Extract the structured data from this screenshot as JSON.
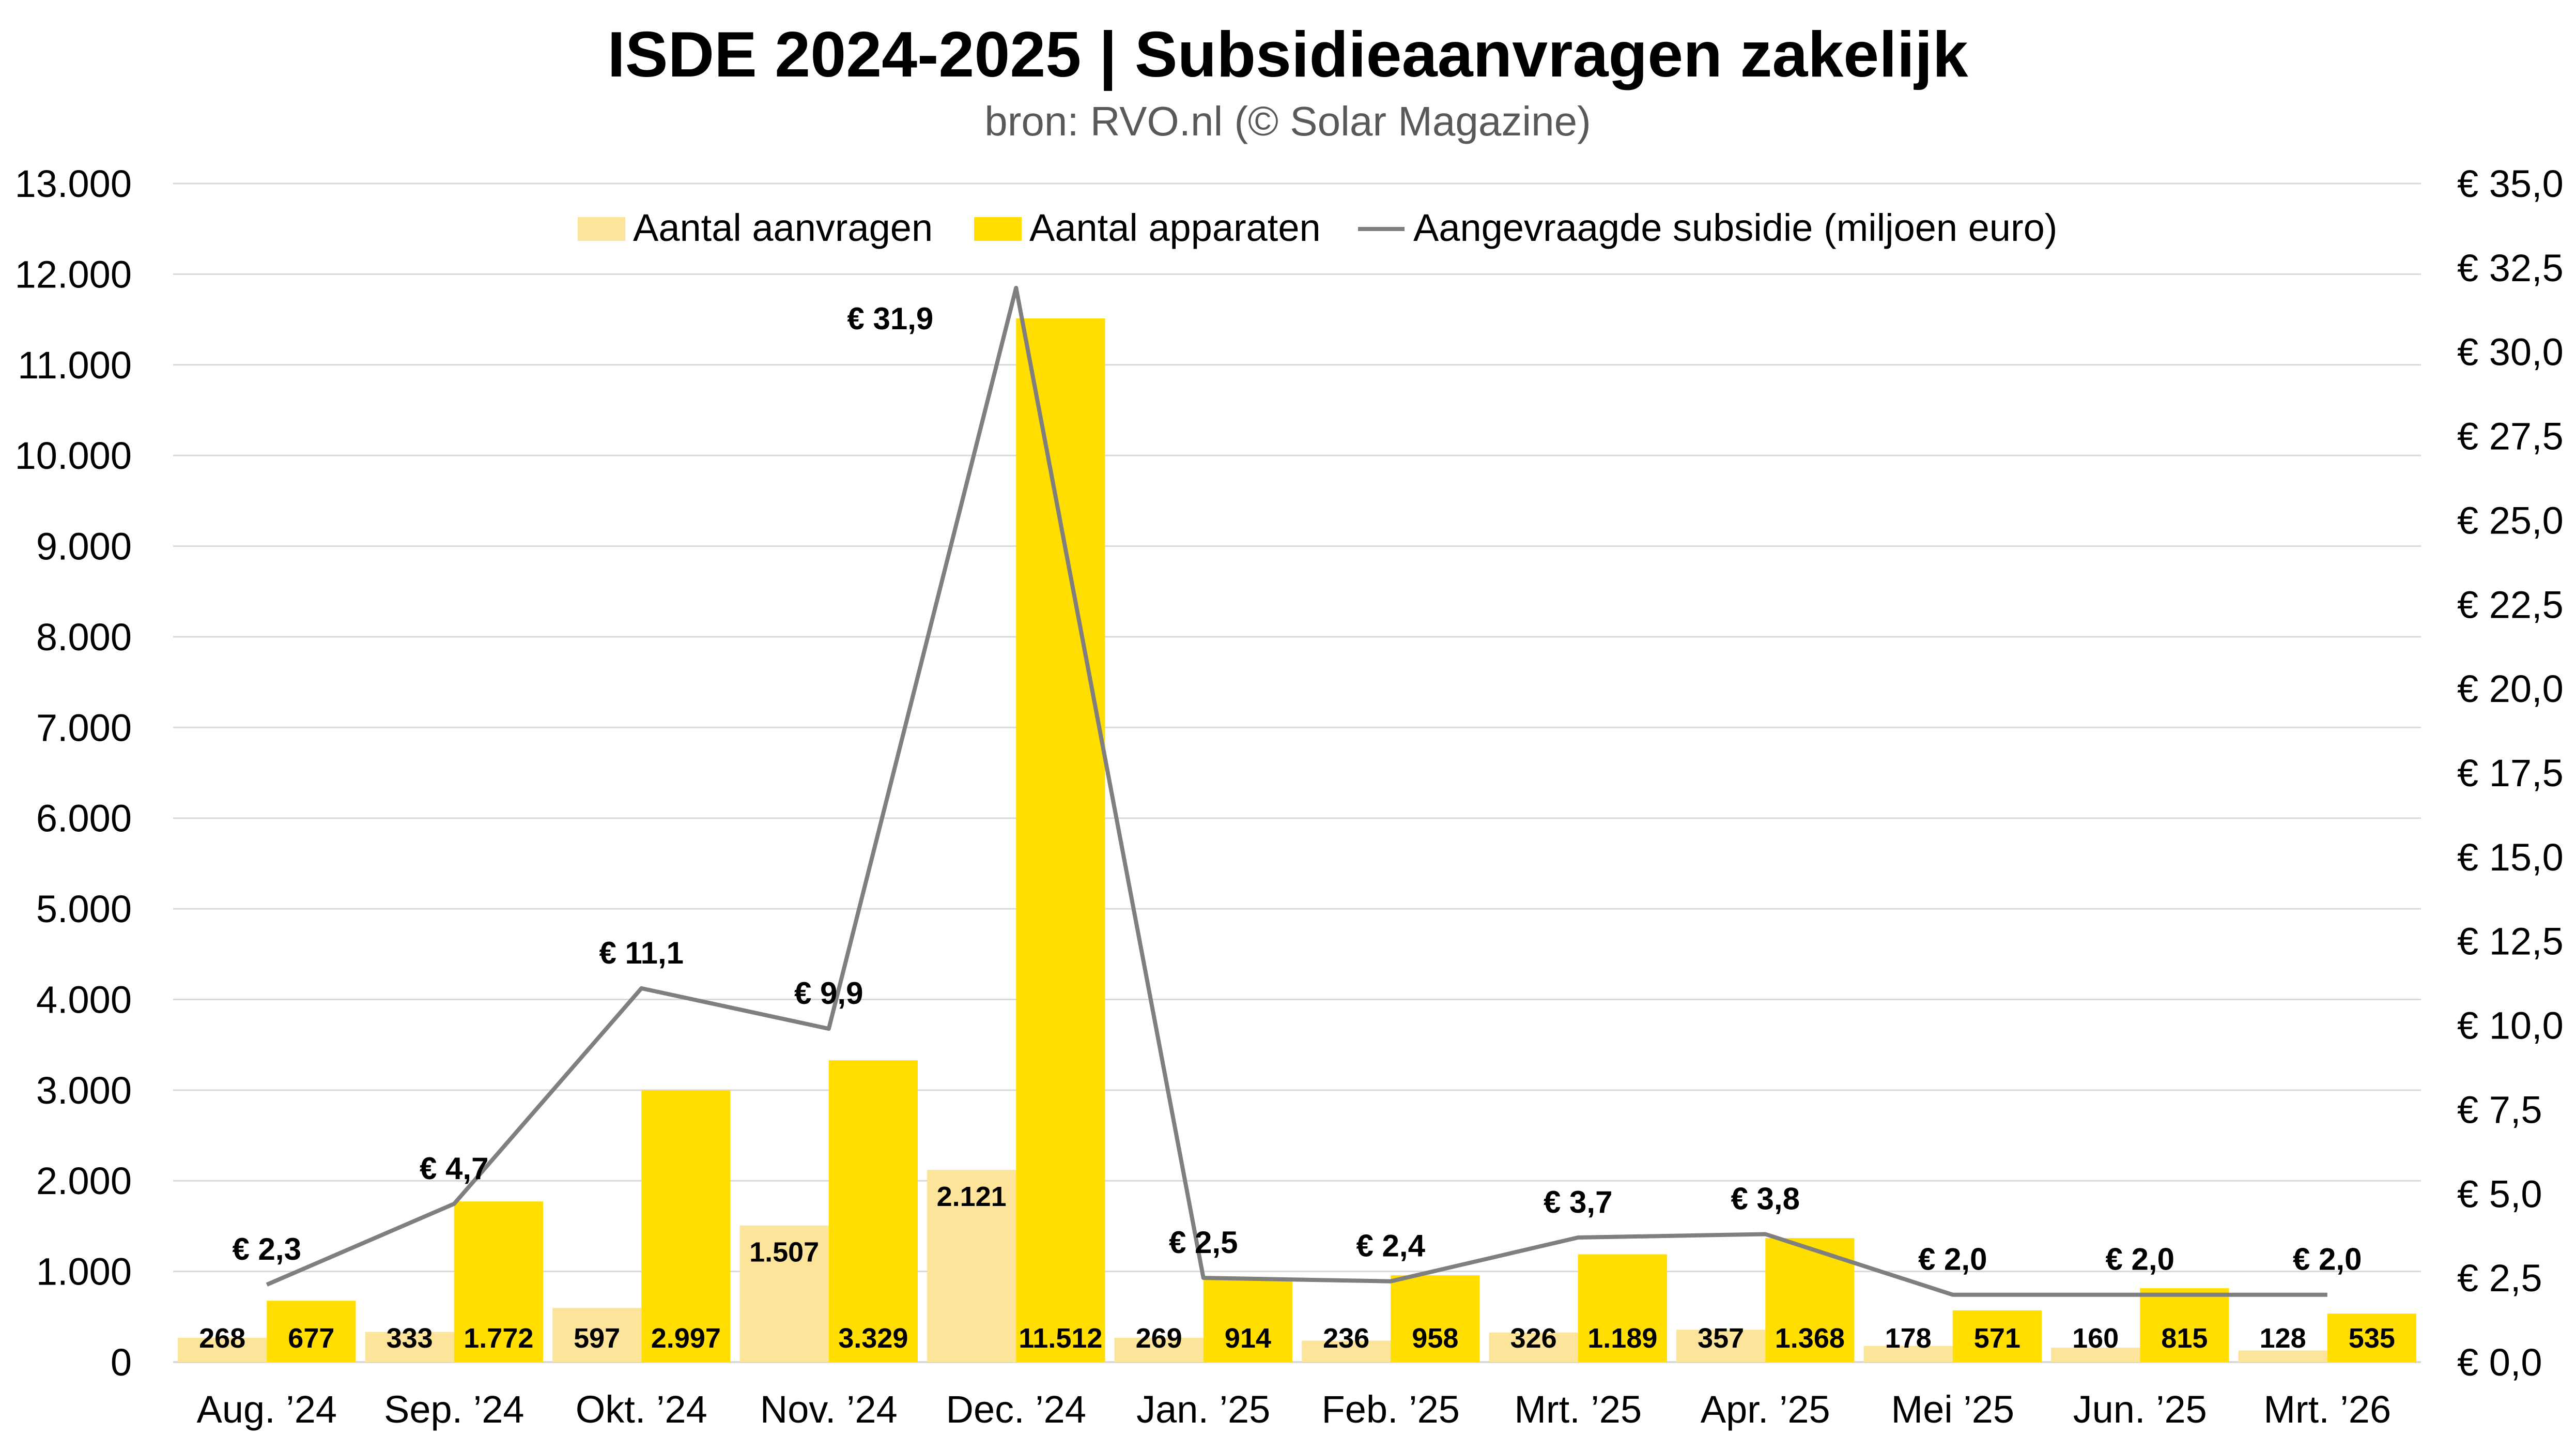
{
  "chart_data": {
    "type": "bar",
    "title": "ISDE 2024-2025 | Subsidieaanvragen zakelijk",
    "subtitle": "bron: RVO.nl (© Solar Magazine)",
    "categories": [
      "Aug. ’24",
      "Sep. ’24",
      "Okt. ’24",
      "Nov. ’24",
      "Dec. ’24",
      "Jan. ’25",
      "Feb. ’25",
      "Mrt. ’25",
      "Apr. ’25",
      "Mei ’25",
      "Jun. ’25",
      "Mrt. ’26"
    ],
    "series": [
      {
        "name": "Aantal aanvragen",
        "kind": "bar",
        "axis": "left",
        "color": "#FCE59A",
        "values": [
          268,
          333,
          597,
          1507,
          2121,
          269,
          236,
          326,
          357,
          178,
          160,
          128
        ],
        "labels": [
          "268",
          "333",
          "597",
          "1.507",
          "2.121",
          "269",
          "236",
          "326",
          "357",
          "178",
          "160",
          "128"
        ]
      },
      {
        "name": "Aantal apparaten",
        "kind": "bar",
        "axis": "left",
        "color": "#FFDE00",
        "values": [
          677,
          1772,
          2997,
          3329,
          11512,
          914,
          958,
          1189,
          1368,
          571,
          815,
          535
        ],
        "labels": [
          "677",
          "1.772",
          "2.997",
          "3.329",
          "11.512",
          "914",
          "958",
          "1.189",
          "1.368",
          "571",
          "815",
          "535"
        ]
      },
      {
        "name": "Aangevraagde subsidie (miljoen euro)",
        "kind": "line",
        "axis": "right",
        "color": "#7F7F7F",
        "values": [
          2.3,
          4.7,
          11.1,
          9.9,
          31.9,
          2.5,
          2.4,
          3.7,
          3.8,
          2.0,
          2.0,
          2.0
        ],
        "labels": [
          "€ 2,3",
          "€ 4,7",
          "€ 11,1",
          "€ 9,9",
          "€ 31,9",
          "€ 2,5",
          "€ 2,4",
          "€ 3,7",
          "€ 3,8",
          "€ 2,0",
          "€ 2,0",
          "€ 2,0"
        ]
      }
    ],
    "y_left": {
      "range": [
        0,
        13000
      ],
      "step": 1000,
      "tick_labels": [
        "0",
        "1.000",
        "2.000",
        "3.000",
        "4.000",
        "5.000",
        "6.000",
        "7.000",
        "8.000",
        "9.000",
        "10.000",
        "11.000",
        "12.000",
        "13.000"
      ]
    },
    "y_right": {
      "range": [
        0,
        35
      ],
      "step": 2.5,
      "tick_labels": [
        "€ 0,0",
        "€ 2,5",
        "€ 5,0",
        "€ 7,5",
        "€ 10,0",
        "€ 12,5",
        "€ 15,0",
        "€ 17,5",
        "€ 20,0",
        "€ 22,5",
        "€ 25,0",
        "€ 27,5",
        "€ 30,0",
        "€ 32,5",
        "€ 35,0"
      ]
    },
    "grid": true,
    "legend": "top-center"
  }
}
